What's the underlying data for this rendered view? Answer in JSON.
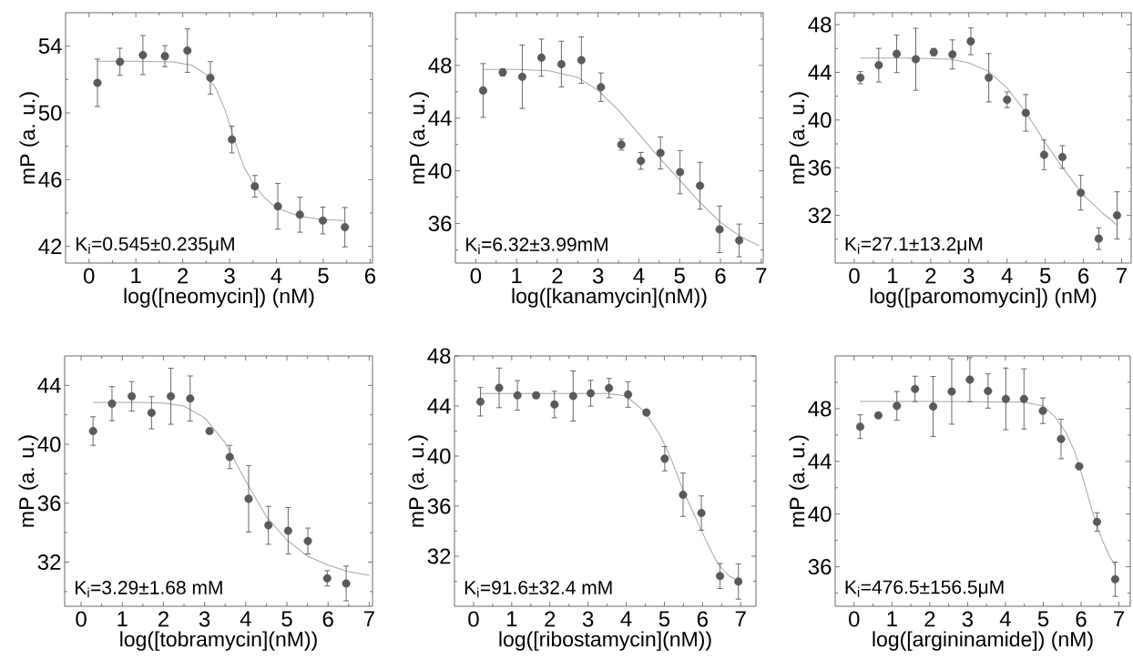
{
  "chart_data": [
    {
      "type": "scatter",
      "xlabel": "log([neomycin]) (nM)",
      "ylabel": "mP (a. u.)",
      "annotations": [
        "K$_{i}$=0.545±0.235μM"
      ],
      "xlim": [
        -0.5,
        6.05
      ],
      "ylim": [
        41,
        56
      ],
      "xticks": [
        0,
        1,
        2,
        3,
        4,
        5,
        6,
        {
          "value": 0.5,
          "label": null
        },
        {
          "value": 1.5,
          "label": null
        },
        {
          "value": 2.5,
          "label": null
        },
        {
          "value": 3.5,
          "label": null
        },
        {
          "value": 4.5,
          "label": null
        },
        {
          "value": 5.5,
          "label": null
        }
      ],
      "yticks": [
        42,
        46,
        50,
        54,
        {
          "value": 44,
          "label": null
        },
        {
          "value": 48,
          "label": null
        },
        {
          "value": 52,
          "label": null
        }
      ],
      "series": [
        {
          "type": "line",
          "color": "#a8a8a8",
          "line_style": "solid",
          "x": [
            0.17,
            1.0,
            1.8,
            2.2,
            2.5,
            2.7,
            2.9,
            3.0,
            3.1,
            3.3,
            3.5,
            3.75,
            4.0,
            4.5,
            5.0,
            5.45
          ],
          "values": [
            53.1,
            53.1,
            53.05,
            52.85,
            52.3,
            51.5,
            50.2,
            49.3,
            48.4,
            46.8,
            45.8,
            44.9,
            44.3,
            43.8,
            43.6,
            43.55
          ]
        },
        {
          "color": "#5a5a5a",
          "marker": "circle",
          "x": [
            0.18,
            0.66,
            1.15,
            1.62,
            2.1,
            2.59,
            3.05,
            3.54,
            4.03,
            4.5,
            4.99,
            5.46
          ],
          "values": [
            51.8,
            53.06,
            53.46,
            53.4,
            53.73,
            52.1,
            48.4,
            45.6,
            44.4,
            43.9,
            43.55,
            43.15
          ],
          "errors": [
            1.42,
            0.81,
            1.17,
            0.63,
            1.3,
            0.97,
            0.8,
            0.65,
            1.37,
            1.05,
            0.8,
            1.18
          ]
        }
      ]
    },
    {
      "type": "scatter",
      "xlabel": "log([kanamycin](nM))",
      "ylabel": "mP (a. u.)",
      "annotations": [
        "K$_{i}$=6.32±3.99mM"
      ],
      "xlim": [
        -0.5,
        7.05
      ],
      "ylim": [
        33,
        52
      ],
      "xticks": [
        0,
        1,
        2,
        3,
        4,
        5,
        6,
        7,
        {
          "value": 0.5,
          "label": null
        },
        {
          "value": 1.5,
          "label": null
        },
        {
          "value": 2.5,
          "label": null
        },
        {
          "value": 3.5,
          "label": null
        },
        {
          "value": 4.5,
          "label": null
        },
        {
          "value": 5.5,
          "label": null
        },
        {
          "value": 6.5,
          "label": null
        }
      ],
      "yticks": [
        36,
        40,
        44,
        48,
        {
          "value": 34,
          "label": null
        },
        {
          "value": 38,
          "label": null
        },
        {
          "value": 42,
          "label": null
        },
        {
          "value": 46,
          "label": null
        },
        {
          "value": 50,
          "label": null
        }
      ],
      "series": [
        {
          "type": "line",
          "color": "#a8a8a8",
          "line_style": "solid",
          "x": [
            0.18,
            1.0,
            1.8,
            2.5,
            3.0,
            3.5,
            4.0,
            4.5,
            5.0,
            5.5,
            6.0,
            6.5,
            6.95
          ],
          "values": [
            47.7,
            47.7,
            47.6,
            47.1,
            46.1,
            44.6,
            42.8,
            41.0,
            39.3,
            37.6,
            36.1,
            35.0,
            34.3
          ]
        },
        {
          "color": "#5a5a5a",
          "marker": "circle",
          "x": [
            0.18,
            0.66,
            1.14,
            1.61,
            2.1,
            2.59,
            3.07,
            3.57,
            4.05,
            4.53,
            5.01,
            5.5,
            5.98,
            6.46
          ],
          "values": [
            46.1,
            47.47,
            47.14,
            48.59,
            48.1,
            48.4,
            46.35,
            41.99,
            40.76,
            41.36,
            39.9,
            38.87,
            35.56,
            34.72
          ],
          "errors": [
            2.04,
            0.26,
            2.4,
            1.41,
            1.74,
            1.76,
            1.08,
            0.42,
            0.64,
            1.22,
            1.64,
            1.78,
            1.77,
            1.24
          ]
        }
      ]
    },
    {
      "type": "scatter",
      "xlabel": "log([paromomycin]) (nM)",
      "ylabel": "mP (a. u.)",
      "annotations": [
        "K$_{i}$=27.1±13.2μM"
      ],
      "xlim": [
        -0.5,
        7.25
      ],
      "ylim": [
        28,
        49
      ],
      "xticks": [
        0,
        1,
        2,
        3,
        4,
        5,
        6,
        7,
        {
          "value": 0.5,
          "label": null
        },
        {
          "value": 1.5,
          "label": null
        },
        {
          "value": 2.5,
          "label": null
        },
        {
          "value": 3.5,
          "label": null
        },
        {
          "value": 4.5,
          "label": null
        },
        {
          "value": 5.5,
          "label": null
        },
        {
          "value": 6.5,
          "label": null
        }
      ],
      "yticks": [
        32,
        36,
        40,
        44,
        48,
        {
          "value": 30,
          "label": null
        },
        {
          "value": 34,
          "label": null
        },
        {
          "value": 38,
          "label": null
        },
        {
          "value": 42,
          "label": null
        },
        {
          "value": 46,
          "label": null
        }
      ],
      "series": [
        {
          "type": "line",
          "color": "#a8a8a8",
          "line_style": "solid",
          "x": [
            0.16,
            1.5,
            2.5,
            3.0,
            3.5,
            4.0,
            4.5,
            5.0,
            5.5,
            6.0,
            6.5,
            6.88
          ],
          "values": [
            45.2,
            45.2,
            45.1,
            44.8,
            44.1,
            42.7,
            40.6,
            38.1,
            35.8,
            33.7,
            32.2,
            31.2
          ]
        },
        {
          "color": "#5a5a5a",
          "marker": "circle",
          "x": [
            0.16,
            0.64,
            1.11,
            1.61,
            2.08,
            2.57,
            3.05,
            3.52,
            4.0,
            4.49,
            4.97,
            5.45,
            5.93,
            6.4,
            6.88
          ],
          "values": [
            43.55,
            44.6,
            45.55,
            45.1,
            45.7,
            45.5,
            46.6,
            43.55,
            41.7,
            40.6,
            37.08,
            36.9,
            33.9,
            30.05,
            32.0
          ],
          "errors": [
            0.51,
            1.41,
            1.57,
            2.6,
            0.3,
            1.22,
            1.12,
            2.03,
            0.66,
            1.54,
            1.24,
            0.95,
            1.46,
            0.91,
            1.98
          ]
        }
      ]
    },
    {
      "type": "scatter",
      "xlabel": "log([tobramycin](nM))",
      "ylabel": "mP (a. u.)",
      "annotations": [
        "K$_{i}$=3.29±1.68 mM"
      ],
      "xlim": [
        -0.4,
        7.08
      ],
      "ylim": [
        29,
        46
      ],
      "xticks": [
        0,
        1,
        2,
        3,
        4,
        5,
        6,
        7,
        {
          "value": 0.5,
          "label": null
        },
        {
          "value": 1.5,
          "label": null
        },
        {
          "value": 2.5,
          "label": null
        },
        {
          "value": 3.5,
          "label": null
        },
        {
          "value": 4.5,
          "label": null
        },
        {
          "value": 5.5,
          "label": null
        },
        {
          "value": 6.5,
          "label": null
        }
      ],
      "yticks": [
        32,
        36,
        40,
        44,
        {
          "value": 30,
          "label": null
        },
        {
          "value": 34,
          "label": null
        },
        {
          "value": 38,
          "label": null
        },
        {
          "value": 42,
          "label": null
        }
      ],
      "series": [
        {
          "type": "line",
          "color": "#a8a8a8",
          "line_style": "solid",
          "x": [
            0.29,
            1.5,
            2.0,
            2.5,
            3.0,
            3.5,
            4.0,
            4.5,
            5.0,
            5.5,
            6.0,
            6.5,
            7.0
          ],
          "values": [
            42.85,
            42.85,
            42.8,
            42.6,
            41.8,
            40.1,
            37.5,
            35.1,
            33.5,
            32.4,
            31.8,
            31.35,
            31.1
          ]
        },
        {
          "color": "#5a5a5a",
          "marker": "circle",
          "x": [
            0.29,
            0.75,
            1.23,
            1.71,
            2.18,
            2.65,
            3.12,
            3.61,
            4.07,
            4.55,
            5.03,
            5.51,
            5.98,
            6.44
          ],
          "values": [
            40.9,
            42.76,
            43.26,
            42.14,
            43.26,
            43.11,
            40.9,
            39.14,
            36.3,
            34.5,
            34.13,
            33.43,
            30.9,
            30.55
          ],
          "errors": [
            0.97,
            1.16,
            1.0,
            1.09,
            1.9,
            1.53,
            null,
            0.79,
            2.26,
            1.29,
            1.58,
            0.88,
            0.52,
            1.18
          ]
        }
      ]
    },
    {
      "type": "scatter",
      "xlabel": "log([ribostamycin](nM))",
      "ylabel": "mP (a. u.)",
      "annotations": [
        "K$_{i}$=91.6±32.4 mM"
      ],
      "xlim": [
        -0.5,
        7.4
      ],
      "ylim": [
        28,
        48
      ],
      "xticks": [
        0,
        1,
        2,
        3,
        4,
        5,
        6,
        7,
        {
          "value": 0.5,
          "label": null
        },
        {
          "value": 1.5,
          "label": null
        },
        {
          "value": 2.5,
          "label": null
        },
        {
          "value": 3.5,
          "label": null
        },
        {
          "value": 4.5,
          "label": null
        },
        {
          "value": 5.5,
          "label": null
        },
        {
          "value": 6.5,
          "label": null
        }
      ],
      "yticks": [
        32,
        36,
        40,
        44,
        48,
        {
          "value": 30,
          "label": null
        },
        {
          "value": 34,
          "label": null
        },
        {
          "value": 38,
          "label": null
        },
        {
          "value": 42,
          "label": null
        },
        {
          "value": 46,
          "label": null
        }
      ],
      "series": [
        {
          "type": "line",
          "color": "#a8a8a8",
          "line_style": "solid",
          "x": [
            0.18,
            2.0,
            3.5,
            4.0,
            4.5,
            4.9,
            5.2,
            5.5,
            5.8,
            6.1,
            6.4,
            6.7,
            6.94
          ],
          "values": [
            45.0,
            45.0,
            45.0,
            44.8,
            43.5,
            41.6,
            39.6,
            37.2,
            35.2,
            33.2,
            31.4,
            30.4,
            30.05
          ]
        },
        {
          "color": "#5a5a5a",
          "marker": "circle",
          "x": [
            0.18,
            0.67,
            1.15,
            1.64,
            2.12,
            2.61,
            3.07,
            3.55,
            4.05,
            4.53,
            5.01,
            5.49,
            5.97,
            6.46,
            6.94
          ],
          "values": [
            44.34,
            45.45,
            44.85,
            44.85,
            44.12,
            44.8,
            45.02,
            45.43,
            44.92,
            43.48,
            39.79,
            36.91,
            35.45,
            30.42,
            29.98
          ],
          "errors": [
            1.14,
            1.58,
            1.18,
            0.24,
            1.06,
            2.0,
            1.03,
            0.77,
            1.02,
            null,
            0.97,
            1.73,
            1.37,
            1.0,
            1.41
          ]
        }
      ]
    },
    {
      "type": "scatter",
      "xlabel": "log([argininamide]) (nM)",
      "ylabel": "mP (a. u.)",
      "annotations": [
        "K$_{i}$=476.5±156.5μM"
      ],
      "xlim": [
        -0.5,
        7.3
      ],
      "ylim": [
        33,
        52
      ],
      "xticks": [
        0,
        1,
        2,
        3,
        4,
        5,
        6,
        7,
        {
          "value": 0.5,
          "label": null
        },
        {
          "value": 1.5,
          "label": null
        },
        {
          "value": 2.5,
          "label": null
        },
        {
          "value": 3.5,
          "label": null
        },
        {
          "value": 4.5,
          "label": null
        },
        {
          "value": 5.5,
          "label": null
        },
        {
          "value": 6.5,
          "label": null
        }
      ],
      "yticks": [
        36,
        40,
        44,
        48,
        {
          "value": 34,
          "label": null
        },
        {
          "value": 38,
          "label": null
        },
        {
          "value": 42,
          "label": null
        },
        {
          "value": 46,
          "label": null
        },
        {
          "value": 50,
          "label": null
        }
      ],
      "series": [
        {
          "type": "line",
          "color": "#a8a8a8",
          "line_style": "solid",
          "x": [
            0.16,
            2.0,
            4.5,
            5.0,
            5.3,
            5.6,
            5.85,
            6.05,
            6.3,
            6.55,
            6.75,
            6.9
          ],
          "values": [
            48.55,
            48.55,
            48.5,
            48.2,
            47.4,
            46.2,
            44.6,
            42.7,
            40.2,
            38.1,
            36.8,
            36.1
          ]
        },
        {
          "color": "#5a5a5a",
          "marker": "circle",
          "x": [
            0.16,
            0.64,
            1.13,
            1.61,
            2.09,
            2.58,
            3.06,
            3.54,
            4.01,
            4.49,
            4.99,
            5.47,
            5.95,
            6.42,
            6.9
          ],
          "values": [
            46.63,
            47.49,
            48.21,
            49.5,
            48.16,
            49.3,
            50.2,
            49.34,
            48.74,
            48.74,
            47.84,
            45.7,
            43.62,
            39.4,
            35.05
          ],
          "errors": [
            0.9,
            null,
            1.09,
            0.96,
            2.28,
            2.48,
            1.67,
            1.3,
            2.34,
            2.28,
            0.97,
            1.5,
            null,
            0.7,
            1.3
          ]
        }
      ]
    }
  ]
}
